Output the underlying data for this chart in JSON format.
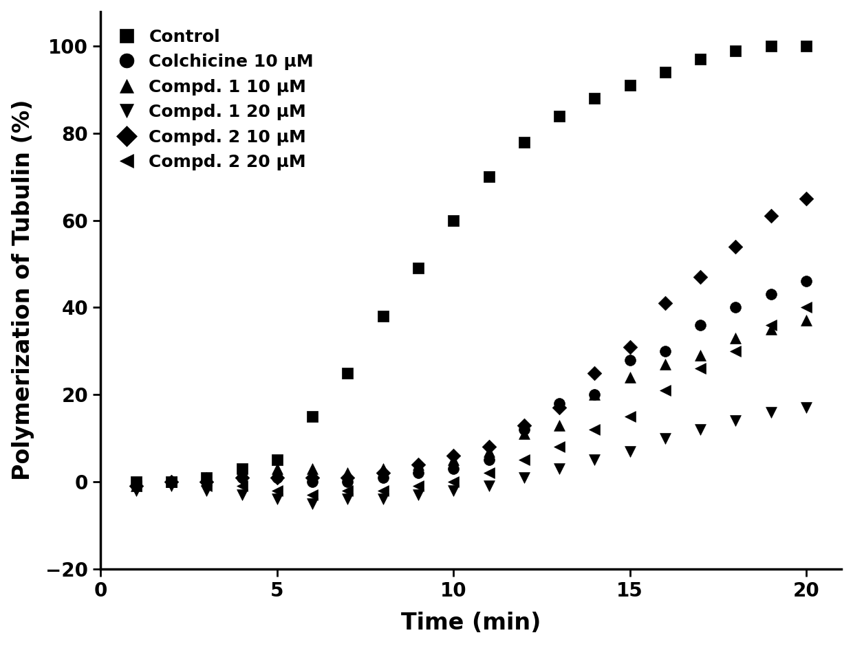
{
  "title": "",
  "xlabel": "Time (min)",
  "ylabel": "Polymerization of Tubulin (%)",
  "xlim": [
    0.5,
    21
  ],
  "ylim": [
    -12,
    108
  ],
  "xticks": [
    0,
    5,
    10,
    15,
    20
  ],
  "yticks": [
    -20,
    0,
    20,
    40,
    60,
    80,
    100
  ],
  "background_color": "#ffffff",
  "series": [
    {
      "label": "Control",
      "marker": "s",
      "color": "#000000",
      "markersize": 130,
      "x": [
        1,
        2,
        3,
        4,
        5,
        6,
        7,
        8,
        9,
        10,
        11,
        12,
        13,
        14,
        15,
        16,
        17,
        18,
        19,
        20
      ],
      "y": [
        0,
        0,
        1,
        3,
        5,
        15,
        25,
        38,
        49,
        60,
        70,
        78,
        84,
        88,
        91,
        94,
        97,
        99,
        100,
        100
      ]
    },
    {
      "label": "Colchicine 10 μM",
      "marker": "o",
      "color": "#000000",
      "markersize": 130,
      "x": [
        1,
        2,
        3,
        4,
        5,
        6,
        7,
        8,
        9,
        10,
        11,
        12,
        13,
        14,
        15,
        16,
        17,
        18,
        19,
        20
      ],
      "y": [
        -1,
        0,
        0,
        1,
        1,
        0,
        0,
        1,
        2,
        3,
        5,
        12,
        18,
        20,
        28,
        30,
        36,
        40,
        43,
        46
      ]
    },
    {
      "label": "Compd. 1 10 μM",
      "marker": "^",
      "color": "#000000",
      "markersize": 130,
      "x": [
        1,
        2,
        3,
        4,
        5,
        6,
        7,
        8,
        9,
        10,
        11,
        12,
        13,
        14,
        15,
        16,
        17,
        18,
        19,
        20
      ],
      "y": [
        -1,
        0,
        1,
        2,
        3,
        3,
        2,
        3,
        4,
        5,
        7,
        11,
        13,
        20,
        24,
        27,
        29,
        33,
        35,
        37
      ]
    },
    {
      "label": "Compd. 1 20 μM",
      "marker": "v",
      "color": "#000000",
      "markersize": 130,
      "x": [
        1,
        2,
        3,
        4,
        5,
        6,
        7,
        8,
        9,
        10,
        11,
        12,
        13,
        14,
        15,
        16,
        17,
        18,
        19,
        20
      ],
      "y": [
        -2,
        -1,
        -2,
        -3,
        -4,
        -5,
        -4,
        -4,
        -3,
        -2,
        -1,
        1,
        3,
        5,
        7,
        10,
        12,
        14,
        16,
        17
      ]
    },
    {
      "label": "Compd. 2 10 μM",
      "marker": "D",
      "color": "#000000",
      "markersize": 110,
      "x": [
        1,
        2,
        3,
        4,
        5,
        6,
        7,
        8,
        9,
        10,
        11,
        12,
        13,
        14,
        15,
        16,
        17,
        18,
        19,
        20
      ],
      "y": [
        -1,
        0,
        0,
        1,
        1,
        1,
        1,
        2,
        4,
        6,
        8,
        13,
        17,
        25,
        31,
        41,
        47,
        54,
        61,
        65
      ]
    },
    {
      "label": "Compd. 2 20 μM",
      "marker": "<",
      "color": "#000000",
      "markersize": 130,
      "x": [
        1,
        2,
        3,
        4,
        5,
        6,
        7,
        8,
        9,
        10,
        11,
        12,
        13,
        14,
        15,
        16,
        17,
        18,
        19,
        20
      ],
      "y": [
        -1,
        0,
        -1,
        -1,
        -2,
        -3,
        -2,
        -2,
        -1,
        0,
        2,
        5,
        8,
        12,
        15,
        21,
        26,
        30,
        36,
        40
      ]
    }
  ]
}
